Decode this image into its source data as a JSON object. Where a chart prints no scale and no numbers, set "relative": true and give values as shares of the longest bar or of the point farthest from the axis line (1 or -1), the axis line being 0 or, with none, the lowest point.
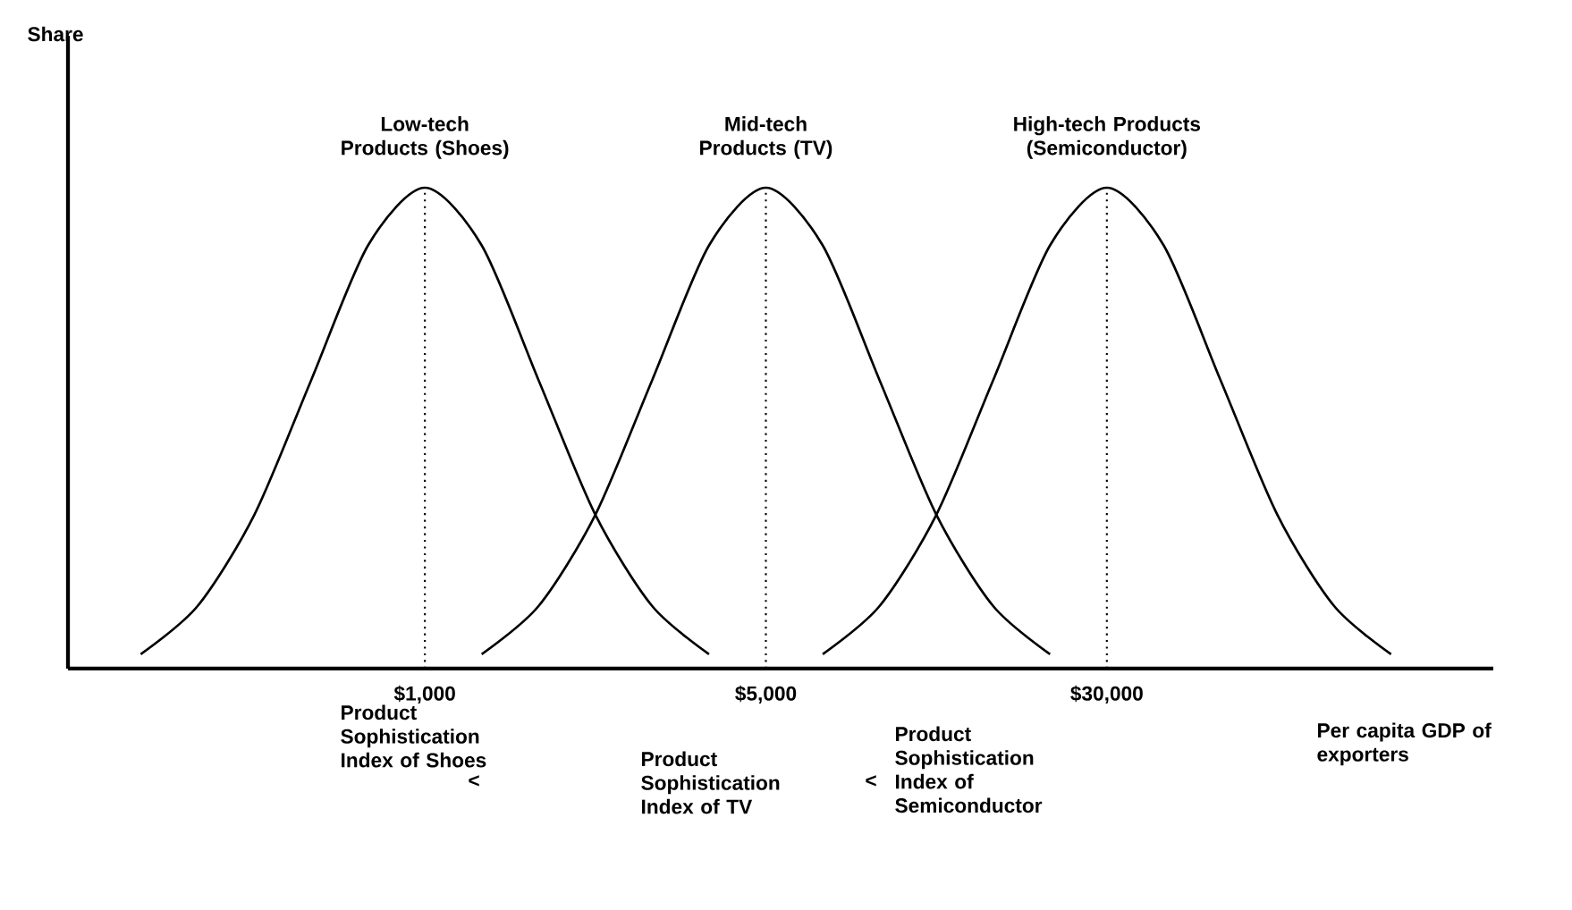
{
  "chart_data": {
    "type": "line",
    "relative": true,
    "xlabel": "Per capita GDP of exporters",
    "categories": [
      null,
      null,
      null,
      null,
      null,
      "$1,000",
      null,
      null,
      null,
      null,
      null,
      "$5,000",
      null,
      null,
      null,
      null,
      null,
      "$30,000",
      null,
      null,
      null,
      null,
      null
    ],
    "marker": "none",
    "line_style": "solid",
    "ref_lines": [
      {
        "axis": "x",
        "value": "$1,000",
        "line_style": "dotted"
      },
      {
        "axis": "x",
        "value": "$5,000",
        "line_style": "dotted"
      },
      {
        "axis": "x",
        "value": "$30,000",
        "line_style": "dotted"
      }
    ],
    "annotations": [
      "Product Sophistication Index of Shoes",
      "<",
      "Product Sophistication Index of TV",
      "<",
      "Product Sophistication Index of Semiconductor",
      "Share"
    ],
    "series": [
      {
        "name": "Low-tech Products (Shoes)",
        "color": "#000000",
        "values": [
          0.03,
          0.13,
          0.32,
          0.6,
          0.88,
          1,
          0.88,
          0.6,
          0.32,
          0.13,
          0.03,
          null,
          null,
          null,
          null,
          null,
          null,
          null,
          null,
          null,
          null,
          null,
          null
        ]
      },
      {
        "name": "Mid-tech Products (TV)",
        "color": "#000000",
        "values": [
          null,
          null,
          null,
          null,
          null,
          null,
          0.03,
          0.13,
          0.32,
          0.6,
          0.88,
          1,
          0.88,
          0.6,
          0.32,
          0.13,
          0.03,
          null,
          null,
          null,
          null,
          null,
          null
        ]
      },
      {
        "name": "High-tech Products (Semiconductor)",
        "color": "#000000",
        "values": [
          null,
          null,
          null,
          null,
          null,
          null,
          null,
          null,
          null,
          null,
          null,
          null,
          0.03,
          0.13,
          0.32,
          0.6,
          0.88,
          1,
          0.88,
          0.6,
          0.32,
          0.13,
          0.03
        ]
      }
    ]
  }
}
